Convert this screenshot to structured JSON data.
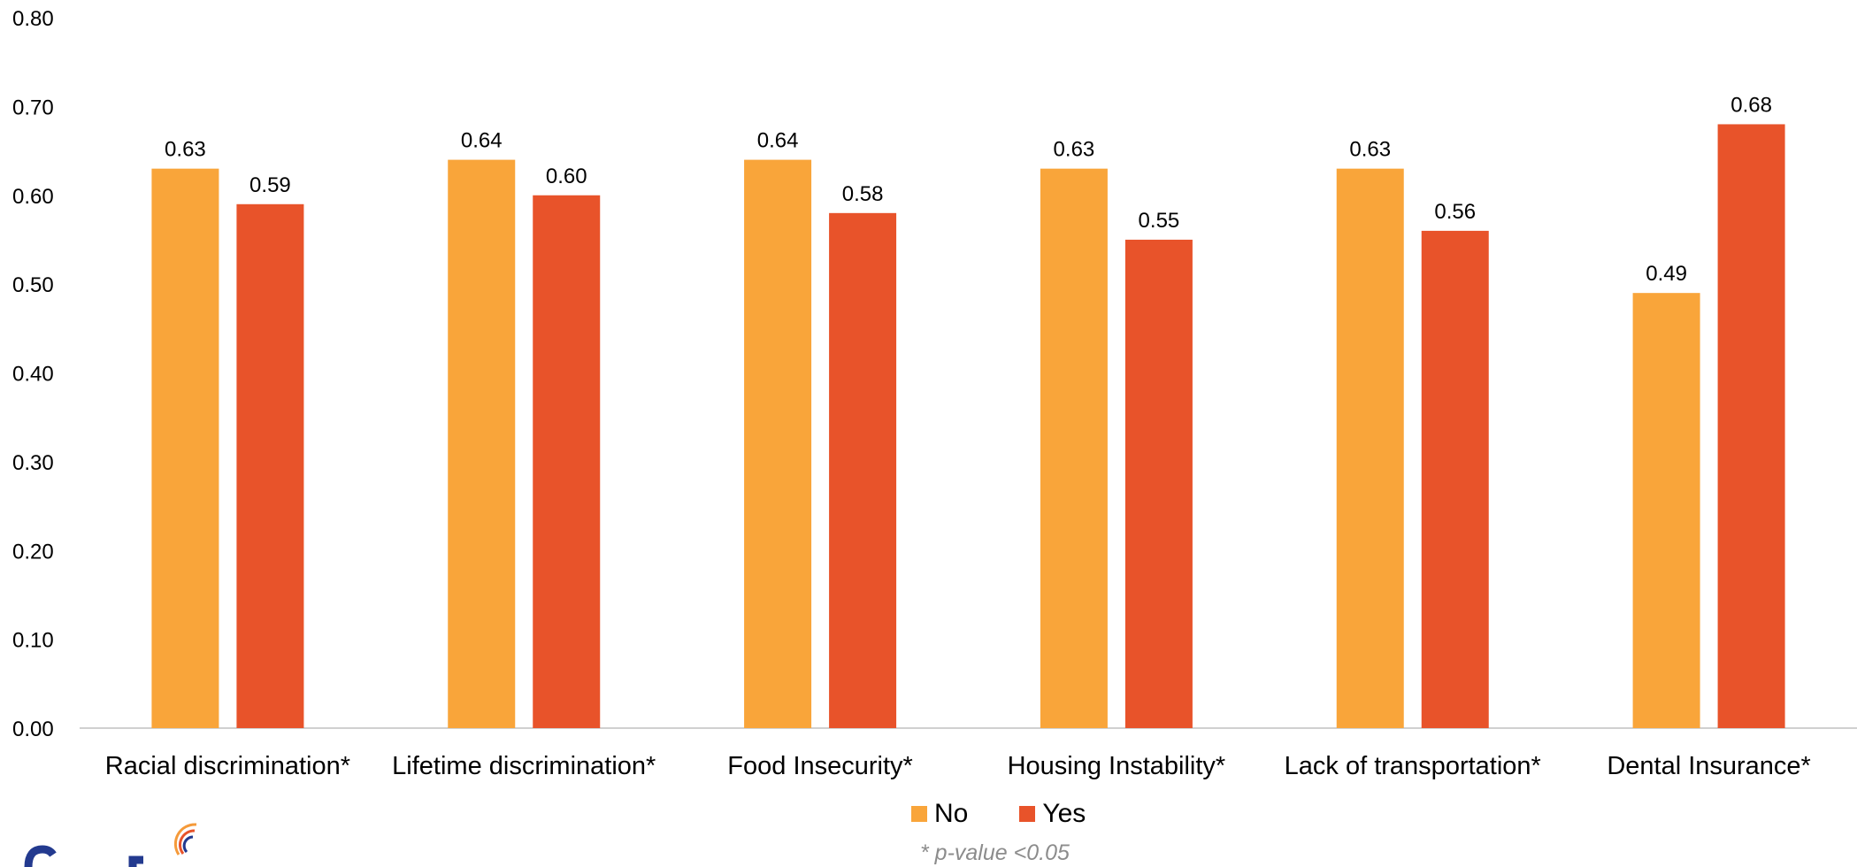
{
  "chart_data": {
    "type": "bar",
    "categories": [
      "Racial discrimination*",
      "Lifetime discrimination*",
      "Food Insecurity*",
      "Housing  Instability*",
      "Lack of transportation*",
      "Dental Insurance*"
    ],
    "series": [
      {
        "name": "No",
        "color": "#F9A53A",
        "values": [
          0.63,
          0.64,
          0.64,
          0.63,
          0.63,
          0.49
        ],
        "labels": [
          "0.63",
          "0.64",
          "0.64",
          "0.63",
          "0.63",
          "0.49"
        ]
      },
      {
        "name": "Yes",
        "color": "#E8532A",
        "values": [
          0.59,
          0.6,
          0.58,
          0.55,
          0.56,
          0.68
        ],
        "labels": [
          "0.59",
          "0.60",
          "0.58",
          "0.55",
          "0.56",
          "0.68"
        ]
      }
    ],
    "ylim": [
      0,
      0.8
    ],
    "yticks": [
      "0.00",
      "0.10",
      "0.20",
      "0.30",
      "0.40",
      "0.50",
      "0.60",
      "0.70",
      "0.80"
    ],
    "grid": false,
    "legend_position": "bottom"
  },
  "footnote": "* p-value <0.05",
  "logo_icon": "concentric-arc-logo"
}
